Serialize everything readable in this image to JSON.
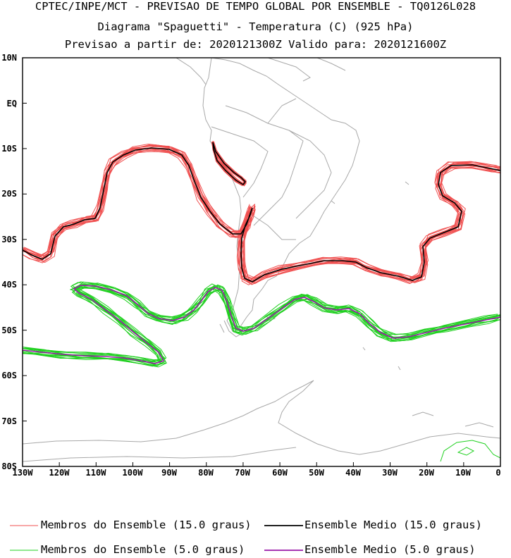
{
  "header": {
    "line1": "CPTEC/INPE/MCT - PREVISAO DE TEMPO GLOBAL POR ENSEMBLE - TQ0126L028",
    "line2": "Diagrama \"Spaguetti\" - Temperatura (C) (925 hPa)",
    "line3": "Previsao a partir de: 2020121300Z  Valido para: 2020121600Z"
  },
  "axes": {
    "lat_labels": [
      "10N",
      "EQ",
      "10S",
      "20S",
      "30S",
      "40S",
      "50S",
      "60S",
      "70S",
      "80S"
    ],
    "lon_labels": [
      "130W",
      "120W",
      "110W",
      "100W",
      "90W",
      "80W",
      "70W",
      "60W",
      "50W",
      "40W",
      "30W",
      "20W",
      "10W",
      "0"
    ]
  },
  "colors": {
    "members_15": "#f05050",
    "mean_15": "#000000",
    "members_5": "#20d020",
    "mean_5": "#9a1aa8",
    "coast": "#a8a8a8"
  },
  "legend": {
    "members_15_label": "Membros do Ensemble (15.0 graus)",
    "mean_15_label": "Ensemble Medio (15.0 graus)",
    "members_5_label": "Membros do Ensemble (5.0 graus)",
    "mean_5_label": "Ensemble Medio (5.0 graus)"
  }
}
